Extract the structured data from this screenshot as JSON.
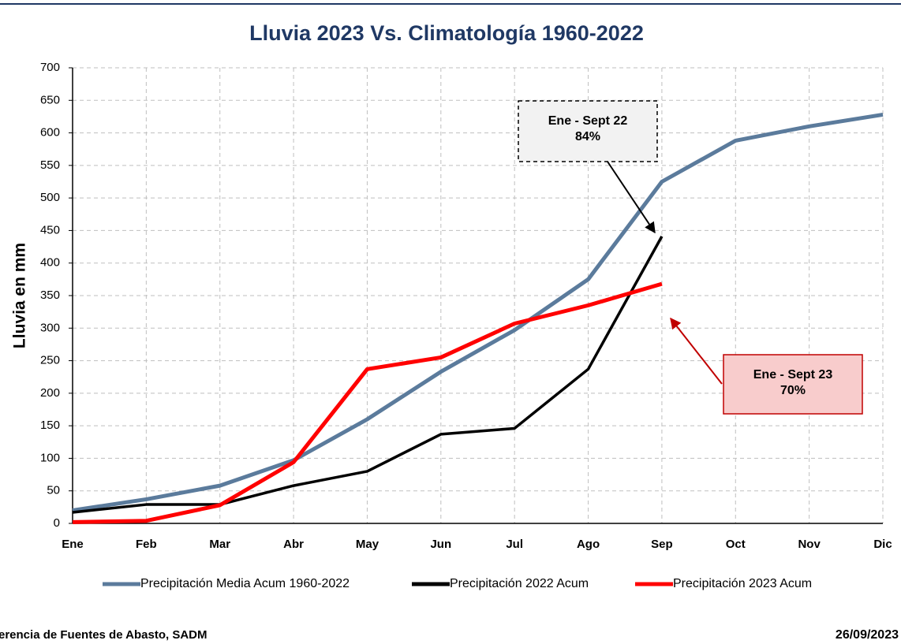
{
  "chart_data": {
    "type": "line",
    "title": "Lluvia 2023 Vs. Climatología 1960-2022",
    "ylabel": "Lluvia en mm",
    "categories": [
      "Ene",
      "Feb",
      "Mar",
      "Abr",
      "May",
      "Jun",
      "Jul",
      "Ago",
      "Sep",
      "Oct",
      "Nov",
      "Dic"
    ],
    "series": [
      {
        "name": "Precipitación Media Acum 1960-2022",
        "color": "#5b7b9c",
        "values": [
          20,
          37,
          58,
          97,
          160,
          233,
          297,
          375,
          525,
          588,
          610,
          628
        ]
      },
      {
        "name": "Precipitación 2022 Acum",
        "color": "#000000",
        "values": [
          17,
          29,
          29,
          58,
          80,
          137,
          146,
          237,
          441,
          null,
          null,
          null
        ]
      },
      {
        "name": "Precipitación 2023 Acum",
        "color": "#ff0000",
        "values": [
          2,
          4,
          28,
          94,
          237,
          255,
          307,
          335,
          368,
          null,
          null,
          null
        ]
      }
    ],
    "ylim": [
      0,
      700
    ],
    "yticks": [
      0,
      50,
      100,
      150,
      200,
      250,
      300,
      350,
      400,
      450,
      500,
      550,
      600,
      650,
      700
    ],
    "grid": true,
    "legend": "bottom",
    "annotations": [
      {
        "lines": [
          "Ene - Sept 22",
          "84%"
        ]
      },
      {
        "lines": [
          "Ene - Sept 23",
          "70%"
        ]
      }
    ],
    "footer_left": "erencia de Fuentes de Abasto, SADM",
    "footer_right": "26/09/2023"
  }
}
